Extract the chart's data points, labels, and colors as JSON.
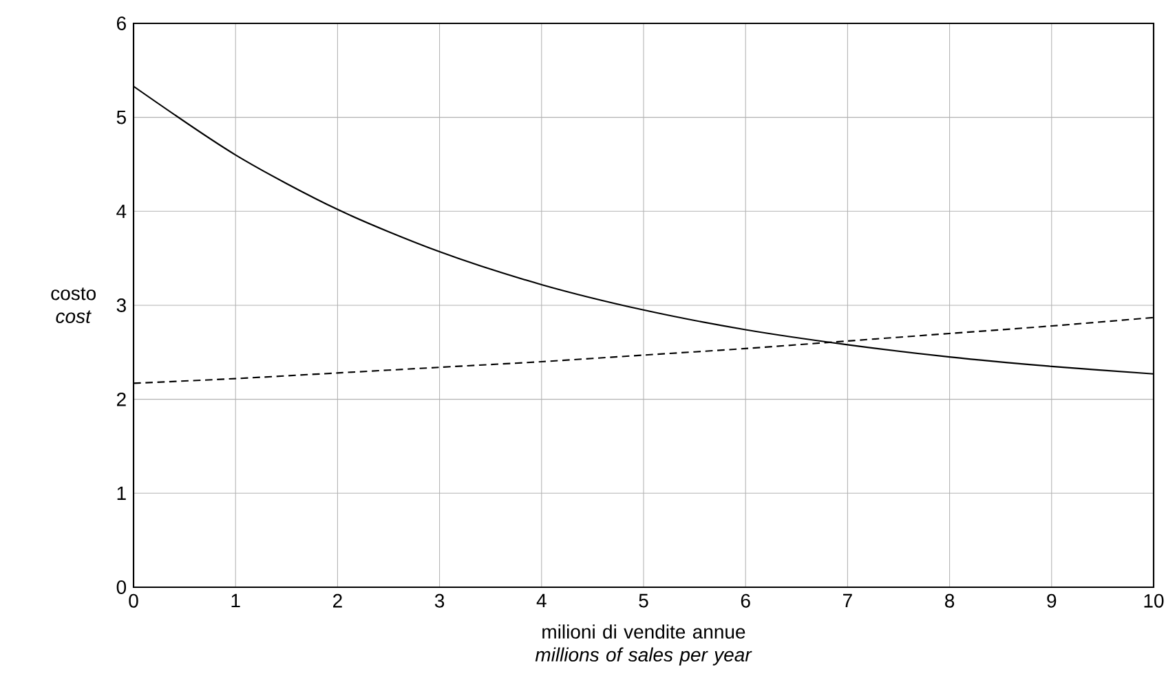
{
  "chart_data": {
    "type": "line",
    "xlabel": "milioni di vendite annue *millions of sales per year*",
    "ylabel": "costo *cost*",
    "x": [
      0,
      1,
      2,
      3,
      4,
      5,
      6,
      7,
      8,
      9,
      10
    ],
    "series": [
      {
        "color": "#000000",
        "line_style": "solid",
        "values": [
          5.33,
          4.6,
          4.02,
          3.57,
          3.22,
          2.95,
          2.74,
          2.58,
          2.45,
          2.35,
          2.27
        ]
      },
      {
        "color": "#000000",
        "line_style": "dashed",
        "values": [
          2.17,
          2.22,
          2.28,
          2.34,
          2.4,
          2.47,
          2.54,
          2.62,
          2.7,
          2.78,
          2.87
        ]
      }
    ],
    "xlim": [
      0,
      10
    ],
    "ylim": [
      0,
      6
    ],
    "xticks": [
      0,
      1,
      2,
      3,
      4,
      5,
      6,
      7,
      8,
      9,
      10
    ],
    "yticks": [
      0,
      1,
      2,
      3,
      4,
      5,
      6
    ],
    "grid": true,
    "marker": "none"
  }
}
